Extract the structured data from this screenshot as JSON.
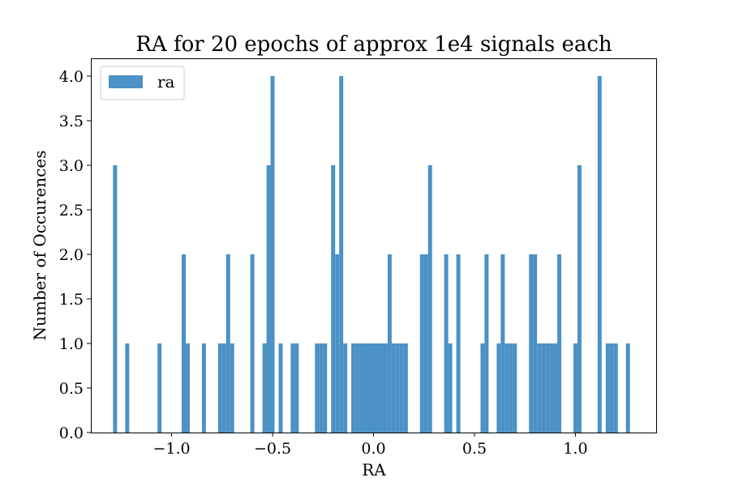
{
  "chart_data": {
    "type": "bar",
    "title": "RA for 20 epochs of approx 1e4 signals each",
    "xlabel": "RA",
    "ylabel": "Number of Occurences",
    "xlim": [
      -1.4,
      1.4
    ],
    "ylim": [
      0,
      4.2
    ],
    "bin_width": 0.02,
    "xticks": [
      -1.0,
      -0.5,
      0.0,
      0.5,
      1.0
    ],
    "xtick_labels": [
      "−1.0",
      "−0.5",
      "0.0",
      "0.5",
      "1.0"
    ],
    "yticks": [
      0.0,
      0.5,
      1.0,
      1.5,
      2.0,
      2.5,
      3.0,
      3.5,
      4.0
    ],
    "ytick_labels": [
      "0.0",
      "0.5",
      "1.0",
      "1.5",
      "2.0",
      "2.5",
      "3.0",
      "3.5",
      "4.0"
    ],
    "legend": {
      "position": "top-left",
      "entries": [
        "ra"
      ]
    },
    "series": [
      {
        "name": "ra",
        "color": "#4b91c5",
        "bins": [
          {
            "x": -1.28,
            "count": 3
          },
          {
            "x": -1.22,
            "count": 1
          },
          {
            "x": -1.06,
            "count": 1
          },
          {
            "x": -0.94,
            "count": 2
          },
          {
            "x": -0.92,
            "count": 1
          },
          {
            "x": -0.84,
            "count": 1
          },
          {
            "x": -0.76,
            "count": 1
          },
          {
            "x": -0.74,
            "count": 1
          },
          {
            "x": -0.72,
            "count": 2
          },
          {
            "x": -0.7,
            "count": 1
          },
          {
            "x": -0.6,
            "count": 2
          },
          {
            "x": -0.54,
            "count": 1
          },
          {
            "x": -0.52,
            "count": 3
          },
          {
            "x": -0.5,
            "count": 4
          },
          {
            "x": -0.46,
            "count": 1
          },
          {
            "x": -0.4,
            "count": 1
          },
          {
            "x": -0.38,
            "count": 1
          },
          {
            "x": -0.28,
            "count": 1
          },
          {
            "x": -0.26,
            "count": 1
          },
          {
            "x": -0.24,
            "count": 1
          },
          {
            "x": -0.2,
            "count": 3
          },
          {
            "x": -0.18,
            "count": 2
          },
          {
            "x": -0.16,
            "count": 4
          },
          {
            "x": -0.14,
            "count": 1
          },
          {
            "x": -0.1,
            "count": 1
          },
          {
            "x": -0.08,
            "count": 1
          },
          {
            "x": -0.06,
            "count": 1
          },
          {
            "x": -0.04,
            "count": 1
          },
          {
            "x": -0.02,
            "count": 1
          },
          {
            "x": 0.0,
            "count": 1
          },
          {
            "x": 0.02,
            "count": 1
          },
          {
            "x": 0.04,
            "count": 1
          },
          {
            "x": 0.06,
            "count": 1
          },
          {
            "x": 0.08,
            "count": 2
          },
          {
            "x": 0.1,
            "count": 1
          },
          {
            "x": 0.12,
            "count": 1
          },
          {
            "x": 0.14,
            "count": 1
          },
          {
            "x": 0.16,
            "count": 1
          },
          {
            "x": 0.24,
            "count": 2
          },
          {
            "x": 0.26,
            "count": 2
          },
          {
            "x": 0.28,
            "count": 3
          },
          {
            "x": 0.36,
            "count": 2
          },
          {
            "x": 0.38,
            "count": 1
          },
          {
            "x": 0.42,
            "count": 2
          },
          {
            "x": 0.54,
            "count": 1
          },
          {
            "x": 0.56,
            "count": 2
          },
          {
            "x": 0.62,
            "count": 1
          },
          {
            "x": 0.64,
            "count": 2
          },
          {
            "x": 0.66,
            "count": 1
          },
          {
            "x": 0.68,
            "count": 1
          },
          {
            "x": 0.7,
            "count": 1
          },
          {
            "x": 0.78,
            "count": 2
          },
          {
            "x": 0.8,
            "count": 2
          },
          {
            "x": 0.82,
            "count": 1
          },
          {
            "x": 0.84,
            "count": 1
          },
          {
            "x": 0.86,
            "count": 1
          },
          {
            "x": 0.88,
            "count": 1
          },
          {
            "x": 0.9,
            "count": 1
          },
          {
            "x": 0.92,
            "count": 2
          },
          {
            "x": 1.0,
            "count": 1
          },
          {
            "x": 1.02,
            "count": 3
          },
          {
            "x": 1.12,
            "count": 4
          },
          {
            "x": 1.16,
            "count": 1
          },
          {
            "x": 1.18,
            "count": 1
          },
          {
            "x": 1.2,
            "count": 1
          },
          {
            "x": 1.26,
            "count": 1
          }
        ]
      }
    ]
  }
}
